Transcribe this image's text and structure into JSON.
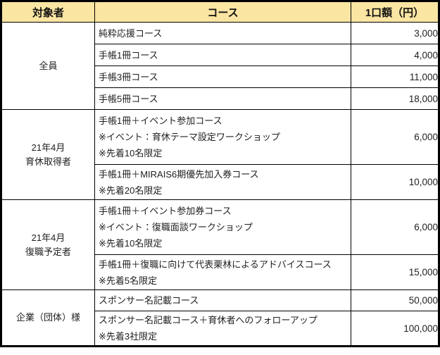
{
  "colors": {
    "header_bg": "#FBE5A3",
    "border": "#000000",
    "text": "#1F1F1F",
    "background": "#FFFFFF"
  },
  "table": {
    "headers": [
      "対象者",
      "コース",
      "1口額（円）"
    ],
    "groups": [
      {
        "target_lines": [
          "全員"
        ],
        "rows": [
          {
            "lines": [
              "純粋応援コース"
            ],
            "price": "3,000"
          },
          {
            "lines": [
              "手帳1冊コース"
            ],
            "price": "4,000"
          },
          {
            "lines": [
              "手帳3冊コース"
            ],
            "price": "11,000"
          },
          {
            "lines": [
              "手帳5冊コース"
            ],
            "price": "18,000"
          }
        ]
      },
      {
        "target_lines": [
          "21年4月",
          "育休取得者"
        ],
        "rows": [
          {
            "lines": [
              "手帳1冊＋イベント参加コース",
              "※イベント：育休テーマ設定ワークショップ",
              "※先着10名限定"
            ],
            "price": "6,000"
          },
          {
            "lines": [
              "手帳1冊＋MIRAIS6期優先加入券コース",
              "※先着20名限定"
            ],
            "price": "10,000"
          }
        ]
      },
      {
        "target_lines": [
          "21年4月",
          "復職予定者"
        ],
        "rows": [
          {
            "lines": [
              "手帳1冊＋イベント参加券コース",
              "※イベント：復職面談ワークショップ",
              "※先着10名限定"
            ],
            "price": "6,000"
          },
          {
            "lines": [
              "手帳1冊＋復職に向けて代表栗林によるアドバイスコース",
              "※先着5名限定"
            ],
            "price": "15,000"
          }
        ]
      },
      {
        "target_lines": [
          "企業（団体）様"
        ],
        "rows": [
          {
            "lines": [
              "スポンサー名記載コース"
            ],
            "price": "50,000"
          },
          {
            "lines": [
              "スポンサー名記載コース＋育休者へのフォローアップ",
              "※先着3社限定"
            ],
            "price": "100,000"
          }
        ]
      }
    ]
  }
}
